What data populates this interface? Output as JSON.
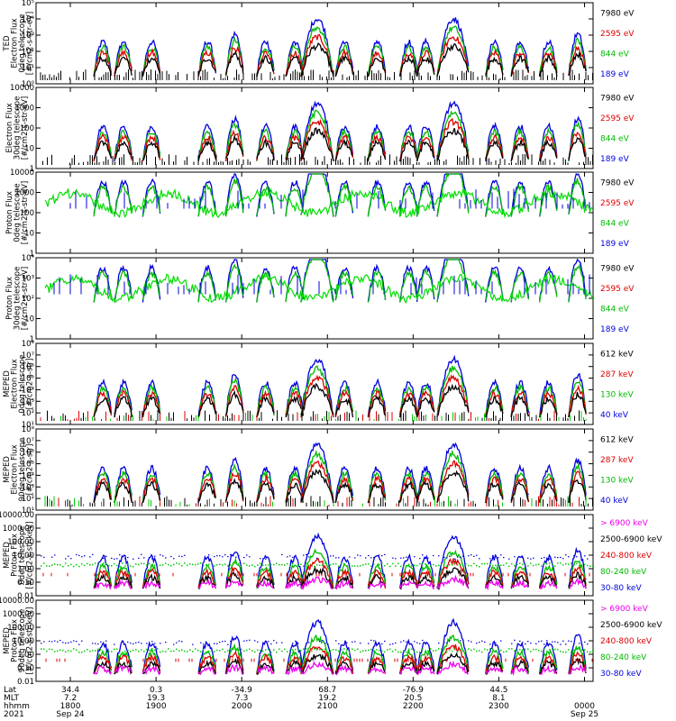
{
  "chart_data": {
    "type": "line",
    "x_axis_rows": [
      {
        "label": "Lat",
        "values": [
          "34.4",
          "0.3",
          "-34.9",
          "68.7",
          "-76.9",
          "44.5",
          ""
        ]
      },
      {
        "label": "MLT",
        "values": [
          "7.2",
          "19.3",
          "7.3",
          "19.2",
          "20.5",
          "8.1",
          ""
        ]
      },
      {
        "label": "hhmm",
        "values": [
          "1800",
          "1900",
          "2000",
          "2100",
          "2200",
          "2300",
          "0000"
        ]
      },
      {
        "label": "2021",
        "values": [
          "Sep 24",
          "",
          "",
          "",
          "",
          "",
          "Sep 25"
        ]
      }
    ],
    "x_ticks_hours": [
      18,
      19,
      20,
      21,
      22,
      23,
      24
    ],
    "xlim_hours": [
      17.6,
      24.1
    ],
    "panels": [
      {
        "ylabel": [
          "TED",
          "Electron Flux",
          "0deg telescope",
          "[#/cm2-s-str-eV]"
        ],
        "scale": "log",
        "ylim": [
          1,
          100000
        ],
        "yticks": [
          "10⁰",
          "10¹",
          "10²",
          "10³",
          "10⁴",
          "10⁵"
        ],
        "legend": [
          {
            "text": "7980 eV",
            "color": "#000000"
          },
          {
            "text": "2595 eV",
            "color": "#dd0000"
          },
          {
            "text": "844 eV",
            "color": "#00bb00"
          },
          {
            "text": "189 eV",
            "color": "#0000dd"
          }
        ]
      },
      {
        "ylabel": [
          "Electron Flux",
          "30deg telescope",
          "[#/cm2-s-str-eV]"
        ],
        "scale": "log",
        "ylim": [
          1,
          10000
        ],
        "yticks": [
          "1",
          "10",
          "100",
          "1000",
          "10000"
        ],
        "legend": [
          {
            "text": "7980 eV",
            "color": "#000000"
          },
          {
            "text": "2595 eV",
            "color": "#dd0000"
          },
          {
            "text": "844 eV",
            "color": "#00bb00"
          },
          {
            "text": "189 eV",
            "color": "#0000dd"
          }
        ]
      },
      {
        "ylabel": [
          "Proton Flux",
          "0deg telescope",
          "[#/cm2-s-str-eV]"
        ],
        "scale": "log",
        "ylim": [
          1,
          10000
        ],
        "yticks": [
          "1",
          "10",
          "100",
          "1000",
          "10000"
        ],
        "legend": [
          {
            "text": "7980 eV",
            "color": "#000000"
          },
          {
            "text": "2595 eV",
            "color": "#dd0000"
          },
          {
            "text": "844 eV",
            "color": "#00bb00"
          },
          {
            "text": "189 eV",
            "color": "#0000dd"
          }
        ]
      },
      {
        "ylabel": [
          "Proton Flux",
          "30deg telescope",
          "[#/cm2-s-str-eV]"
        ],
        "scale": "log",
        "ylim": [
          1,
          10000
        ],
        "yticks": [
          "1",
          "10",
          "10²",
          "10³",
          "10⁴"
        ],
        "legend": [
          {
            "text": "7980 eV",
            "color": "#000000"
          },
          {
            "text": "2595 eV",
            "color": "#dd0000"
          },
          {
            "text": "844 eV",
            "color": "#00bb00"
          },
          {
            "text": "189 eV",
            "color": "#0000dd"
          }
        ]
      },
      {
        "ylabel": [
          "MEPED",
          "Electron Flux",
          "0deg telescope",
          "[#/cm2-s-str]"
        ],
        "scale": "log",
        "ylim": [
          10,
          100000000
        ],
        "yticks": [
          "10¹",
          "10²",
          "10³",
          "10⁴",
          "10⁵",
          "10⁶",
          "10⁷",
          "10⁸"
        ],
        "legend": [
          {
            "text": "612 keV",
            "color": "#000000"
          },
          {
            "text": "287 keV",
            "color": "#dd0000"
          },
          {
            "text": "130 keV",
            "color": "#00bb00"
          },
          {
            "text": "40 keV",
            "color": "#0000dd"
          }
        ]
      },
      {
        "ylabel": [
          "MEPED",
          "Electron Flux",
          "90deg telescope",
          "[#/cm2-s-str]"
        ],
        "scale": "log",
        "ylim": [
          10,
          100000000
        ],
        "yticks": [
          "10¹",
          "10²",
          "10³",
          "10⁴",
          "10⁵",
          "10⁶",
          "10⁷",
          "10⁸"
        ],
        "legend": [
          {
            "text": "612 keV",
            "color": "#000000"
          },
          {
            "text": "287 keV",
            "color": "#dd0000"
          },
          {
            "text": "130 keV",
            "color": "#00bb00"
          },
          {
            "text": "40 keV",
            "color": "#0000dd"
          }
        ]
      },
      {
        "ylabel": [
          "MEPED",
          "Proton Flux",
          "0deg telescope",
          "[#/cm2-s-str-keV]"
        ],
        "scale": "log",
        "ylim": [
          0.01,
          10000
        ],
        "yticks": [
          "0.01",
          "0.10",
          "1.00",
          "10.00",
          "100.00",
          "1000.00",
          "10000.00"
        ],
        "legend": [
          {
            "text": "> 6900 keV",
            "color": "#ee00ee"
          },
          {
            "text": "2500-6900 keV",
            "color": "#000000"
          },
          {
            "text": "240-800 keV",
            "color": "#dd0000"
          },
          {
            "text": "80-240 keV",
            "color": "#00bb00"
          },
          {
            "text": "30-80 keV",
            "color": "#0000dd"
          }
        ]
      },
      {
        "ylabel": [
          "MEPED",
          "Proton Flux",
          "90deg telescope",
          "[#/cm2-s-str-keV]"
        ],
        "scale": "log",
        "ylim": [
          0.01,
          10000
        ],
        "yticks": [
          "0.01",
          "0.10",
          "1.00",
          "10.00",
          "100.00",
          "1000.00",
          "10000.00"
        ],
        "legend": [
          {
            "text": "> 6900 keV",
            "color": "#ee00ee"
          },
          {
            "text": "2500-6900 keV",
            "color": "#000000"
          },
          {
            "text": "240-800 keV",
            "color": "#dd0000"
          },
          {
            "text": "80-240 keV",
            "color": "#00bb00"
          },
          {
            "text": "30-80 keV",
            "color": "#0000dd"
          }
        ]
      }
    ],
    "passes": [
      {
        "center_hour": 18.38,
        "kind": "low"
      },
      {
        "center_hour": 18.62,
        "kind": "low"
      },
      {
        "center_hour": 18.95,
        "kind": "low"
      },
      {
        "center_hour": 19.6,
        "kind": "low"
      },
      {
        "center_hour": 19.92,
        "kind": "mid"
      },
      {
        "center_hour": 20.28,
        "kind": "low"
      },
      {
        "center_hour": 20.62,
        "kind": "low"
      },
      {
        "center_hour": 20.88,
        "kind": "high"
      },
      {
        "center_hour": 21.2,
        "kind": "low"
      },
      {
        "center_hour": 21.58,
        "kind": "low"
      },
      {
        "center_hour": 21.95,
        "kind": "low"
      },
      {
        "center_hour": 22.15,
        "kind": "low"
      },
      {
        "center_hour": 22.47,
        "kind": "high"
      },
      {
        "center_hour": 22.95,
        "kind": "low"
      },
      {
        "center_hour": 23.25,
        "kind": "low"
      },
      {
        "center_hour": 23.58,
        "kind": "low"
      },
      {
        "center_hour": 23.92,
        "kind": "mid"
      }
    ]
  }
}
